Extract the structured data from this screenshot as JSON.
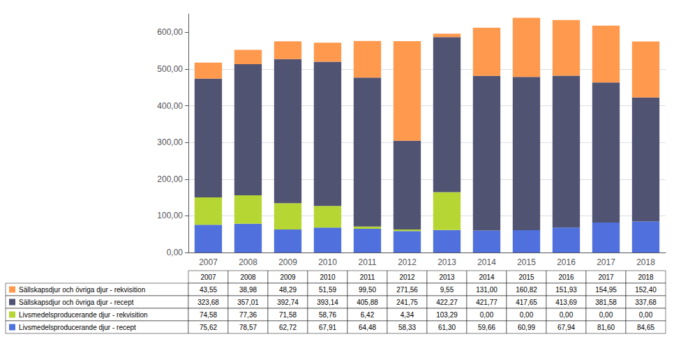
{
  "chart_data": {
    "type": "bar",
    "stacked": true,
    "grid": true,
    "categories": [
      "2007",
      "2008",
      "2009",
      "2010",
      "2011",
      "2012",
      "2013",
      "2014",
      "2015",
      "2016",
      "2017",
      "2018"
    ],
    "series": [
      {
        "name": "Livsmedelsproducerande djur - recept",
        "values": [
          75.62,
          78.57,
          62.72,
          67.91,
          64.48,
          58.33,
          61.3,
          59.66,
          60.99,
          67.94,
          81.6,
          84.65
        ],
        "value_labels": [
          "75,62",
          "78,57",
          "62,72",
          "67,91",
          "64,48",
          "58,33",
          "61,30",
          "59,66",
          "60,99",
          "67,94",
          "81,60",
          "84,65"
        ]
      },
      {
        "name": "Livsmedelsproducerande djur - rekvisition",
        "values": [
          74.58,
          77.36,
          71.58,
          58.76,
          6.42,
          4.34,
          103.29,
          0.0,
          0.0,
          0.0,
          0.0,
          0.0
        ],
        "value_labels": [
          "74,58",
          "77,36",
          "71,58",
          "58,76",
          "6,42",
          "4,34",
          "103,29",
          "0,00",
          "0,00",
          "0,00",
          "0,00",
          "0,00"
        ]
      },
      {
        "name": "Sällskapsdjur och övriga djur - recept",
        "values": [
          323.68,
          357.01,
          392.74,
          393.14,
          405.88,
          241.75,
          422.27,
          421.77,
          417.65,
          413.69,
          381.58,
          337.68
        ],
        "value_labels": [
          "323,68",
          "357,01",
          "392,74",
          "393,14",
          "405,88",
          "241,75",
          "422,27",
          "421,77",
          "417,65",
          "413,69",
          "381,58",
          "337,68"
        ]
      },
      {
        "name": "Sällskapsdjur och övriga djur - rekvisition",
        "values": [
          43.55,
          38.98,
          48.29,
          51.59,
          99.5,
          271.56,
          9.55,
          131.0,
          160.82,
          151.93,
          154.95,
          152.4
        ],
        "value_labels": [
          "43,55",
          "38,98",
          "48,29",
          "51,59",
          "99,50",
          "271,56",
          "9,55",
          "131,00",
          "160,82",
          "151,93",
          "154,95",
          "152,40"
        ]
      }
    ],
    "ylim": [
      0,
      650
    ],
    "yticks": [
      {
        "value": 0,
        "label": "0,00"
      },
      {
        "value": 100,
        "label": "100,00"
      },
      {
        "value": 200,
        "label": "200,00"
      },
      {
        "value": 300,
        "label": "300,00"
      },
      {
        "value": 400,
        "label": "400,00"
      },
      {
        "value": 500,
        "label": "500,00"
      },
      {
        "value": 600,
        "label": "600,00"
      }
    ]
  }
}
